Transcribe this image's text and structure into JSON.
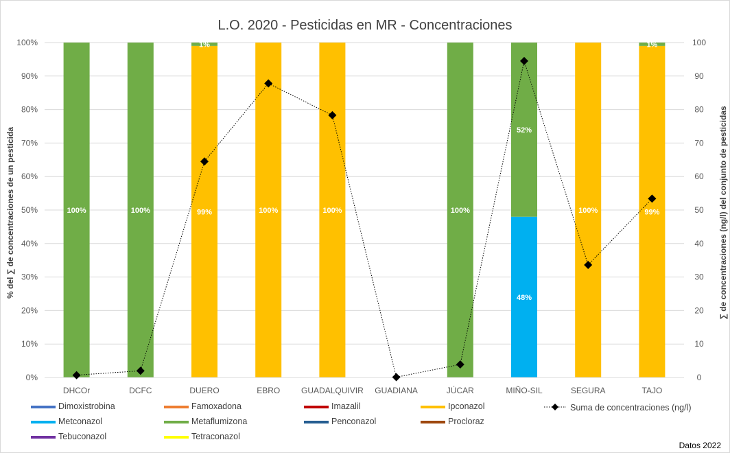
{
  "chart_data": {
    "type": "bar",
    "stacked": true,
    "percent_stacked": true,
    "title": "L.O. 2020 - Pesticidas en MR - Concentraciones",
    "ylabel": "% del ∑ de concentraciones de un pesticida",
    "y2label": "∑ de concentraciones (ng/l) del conjunto de pesticidas",
    "ylim": [
      0,
      100
    ],
    "y2lim": [
      0,
      100
    ],
    "yticks": [
      "0%",
      "10%",
      "20%",
      "30%",
      "40%",
      "50%",
      "60%",
      "70%",
      "80%",
      "90%",
      "100%"
    ],
    "y2ticks": [
      "0",
      "10",
      "20",
      "30",
      "40",
      "50",
      "60",
      "70",
      "80",
      "90",
      "100"
    ],
    "grid": true,
    "legend_position": "bottom",
    "categories": [
      "DHCOr",
      "DCFC",
      "DUERO",
      "EBRO",
      "GUADALQUIVIR",
      "GUADIANA",
      "JÚCAR",
      "MIÑO-SIL",
      "SEGURA",
      "TAJO"
    ],
    "series": [
      {
        "name": "Dimoxistrobina",
        "color": "#4472c4",
        "values": [
          0,
          0,
          0,
          0,
          0,
          0,
          0,
          0,
          0,
          0
        ],
        "labels": [
          "",
          "",
          "",
          "",
          "",
          "",
          "",
          "",
          "",
          ""
        ]
      },
      {
        "name": "Famoxadona",
        "color": "#ed7d31",
        "values": [
          0,
          0,
          0,
          0,
          0,
          0,
          0,
          0,
          0,
          0
        ],
        "labels": [
          "",
          "",
          "",
          "",
          "",
          "",
          "",
          "",
          "",
          ""
        ]
      },
      {
        "name": "Imazalil",
        "color": "#c00000",
        "values": [
          0,
          0,
          0,
          0,
          0,
          0,
          0,
          0,
          0,
          0
        ],
        "labels": [
          "",
          "",
          "",
          "",
          "",
          "",
          "",
          "",
          "",
          ""
        ]
      },
      {
        "name": "Ipconazol",
        "color": "#ffc000",
        "values": [
          0,
          0,
          99,
          100,
          100,
          0,
          0,
          0,
          100,
          99
        ],
        "labels": [
          "",
          "",
          "99%",
          "100%",
          "100%",
          "",
          "",
          "",
          "100%",
          "99%"
        ]
      },
      {
        "name": "Metconazol",
        "color": "#00b0f0",
        "values": [
          0,
          0,
          0,
          0,
          0,
          0,
          0,
          48,
          0,
          0
        ],
        "labels": [
          "",
          "",
          "",
          "",
          "",
          "",
          "",
          "48%",
          "",
          ""
        ]
      },
      {
        "name": "Metaflumizona",
        "color": "#70ad47",
        "values": [
          100,
          100,
          1,
          0,
          0,
          0,
          100,
          52,
          0,
          1
        ],
        "labels": [
          "100%",
          "100%",
          "1%",
          "",
          "",
          "",
          "100%",
          "52%",
          "",
          "1%"
        ]
      },
      {
        "name": "Penconazol",
        "color": "#255e91",
        "values": [
          0,
          0,
          0,
          0,
          0,
          0,
          0,
          0,
          0,
          0
        ],
        "labels": [
          "",
          "",
          "",
          "",
          "",
          "",
          "",
          "",
          "",
          ""
        ]
      },
      {
        "name": "Procloraz",
        "color": "#9e480e",
        "values": [
          0,
          0,
          0,
          0,
          0,
          0,
          0,
          0,
          0,
          0
        ],
        "labels": [
          "",
          "",
          "",
          "",
          "",
          "",
          "",
          "",
          "",
          ""
        ]
      },
      {
        "name": "Tebuconazol",
        "color": "#7030a0",
        "values": [
          0,
          0,
          0,
          0,
          0,
          0,
          0,
          0,
          0,
          0
        ],
        "labels": [
          "",
          "",
          "",
          "",
          "",
          "",
          "",
          "",
          "",
          ""
        ]
      },
      {
        "name": "Tetraconazol",
        "color": "#ffff00",
        "values": [
          0,
          0,
          0,
          0,
          0,
          0,
          0,
          0,
          0,
          0
        ],
        "labels": [
          "",
          "",
          "",
          "",
          "",
          "",
          "",
          "",
          "",
          ""
        ]
      }
    ],
    "line_series": {
      "name": "Suma de concentraciones (ng/l)",
      "axis": "secondary",
      "color": "#000000",
      "marker": "diamond",
      "values": [
        0.7,
        2.0,
        64.5,
        87.8,
        78.3,
        0.1,
        3.9,
        94.5,
        33.6,
        53.4
      ]
    },
    "note": "Datos 2022"
  }
}
